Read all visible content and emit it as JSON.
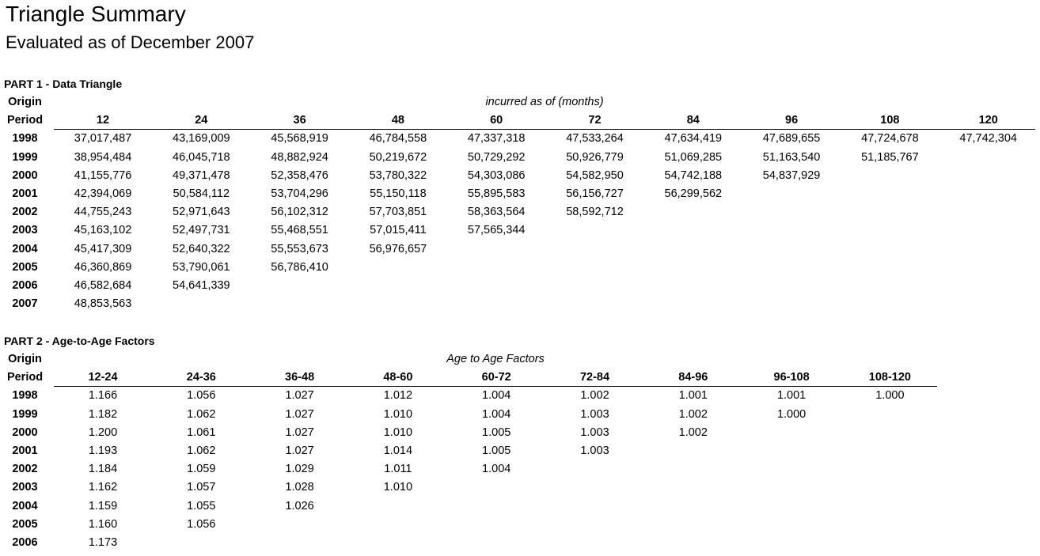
{
  "title": "Triangle Summary",
  "subtitle": "Evaluated as of December 2007",
  "part1": {
    "heading": "PART 1 - Data Triangle",
    "row_header_top": "Origin",
    "row_header_bottom": "Period",
    "caption": "incurred as of (months)",
    "columns": [
      "12",
      "24",
      "36",
      "48",
      "60",
      "72",
      "84",
      "96",
      "108",
      "120"
    ],
    "rows": [
      {
        "period": "1998",
        "values": [
          "37,017,487",
          "43,169,009",
          "45,568,919",
          "46,784,558",
          "47,337,318",
          "47,533,264",
          "47,634,419",
          "47,689,655",
          "47,724,678",
          "47,742,304"
        ]
      },
      {
        "period": "1999",
        "values": [
          "38,954,484",
          "46,045,718",
          "48,882,924",
          "50,219,672",
          "50,729,292",
          "50,926,779",
          "51,069,285",
          "51,163,540",
          "51,185,767"
        ]
      },
      {
        "period": "2000",
        "values": [
          "41,155,776",
          "49,371,478",
          "52,358,476",
          "53,780,322",
          "54,303,086",
          "54,582,950",
          "54,742,188",
          "54,837,929"
        ]
      },
      {
        "period": "2001",
        "values": [
          "42,394,069",
          "50,584,112",
          "53,704,296",
          "55,150,118",
          "55,895,583",
          "56,156,727",
          "56,299,562"
        ]
      },
      {
        "period": "2002",
        "values": [
          "44,755,243",
          "52,971,643",
          "56,102,312",
          "57,703,851",
          "58,363,564",
          "58,592,712"
        ]
      },
      {
        "period": "2003",
        "values": [
          "45,163,102",
          "52,497,731",
          "55,468,551",
          "57,015,411",
          "57,565,344"
        ]
      },
      {
        "period": "2004",
        "values": [
          "45,417,309",
          "52,640,322",
          "55,553,673",
          "56,976,657"
        ]
      },
      {
        "period": "2005",
        "values": [
          "46,360,869",
          "53,790,061",
          "56,786,410"
        ]
      },
      {
        "period": "2006",
        "values": [
          "46,582,684",
          "54,641,339"
        ]
      },
      {
        "period": "2007",
        "values": [
          "48,853,563"
        ]
      }
    ]
  },
  "part2": {
    "heading": "PART 2 - Age-to-Age Factors",
    "row_header_top": "Origin",
    "row_header_bottom": "Period",
    "caption": "Age to Age Factors",
    "columns": [
      "12-24",
      "24-36",
      "36-48",
      "48-60",
      "60-72",
      "72-84",
      "84-96",
      "96-108",
      "108-120"
    ],
    "rows": [
      {
        "period": "1998",
        "values": [
          "1.166",
          "1.056",
          "1.027",
          "1.012",
          "1.004",
          "1.002",
          "1.001",
          "1.001",
          "1.000"
        ]
      },
      {
        "period": "1999",
        "values": [
          "1.182",
          "1.062",
          "1.027",
          "1.010",
          "1.004",
          "1.003",
          "1.002",
          "1.000"
        ]
      },
      {
        "period": "2000",
        "values": [
          "1.200",
          "1.061",
          "1.027",
          "1.010",
          "1.005",
          "1.003",
          "1.002"
        ]
      },
      {
        "period": "2001",
        "values": [
          "1.193",
          "1.062",
          "1.027",
          "1.014",
          "1.005",
          "1.003"
        ]
      },
      {
        "period": "2002",
        "values": [
          "1.184",
          "1.059",
          "1.029",
          "1.011",
          "1.004"
        ]
      },
      {
        "period": "2003",
        "values": [
          "1.162",
          "1.057",
          "1.028",
          "1.010"
        ]
      },
      {
        "period": "2004",
        "values": [
          "1.159",
          "1.055",
          "1.026"
        ]
      },
      {
        "period": "2005",
        "values": [
          "1.160",
          "1.056"
        ]
      },
      {
        "period": "2006",
        "values": [
          "1.173"
        ]
      }
    ]
  }
}
